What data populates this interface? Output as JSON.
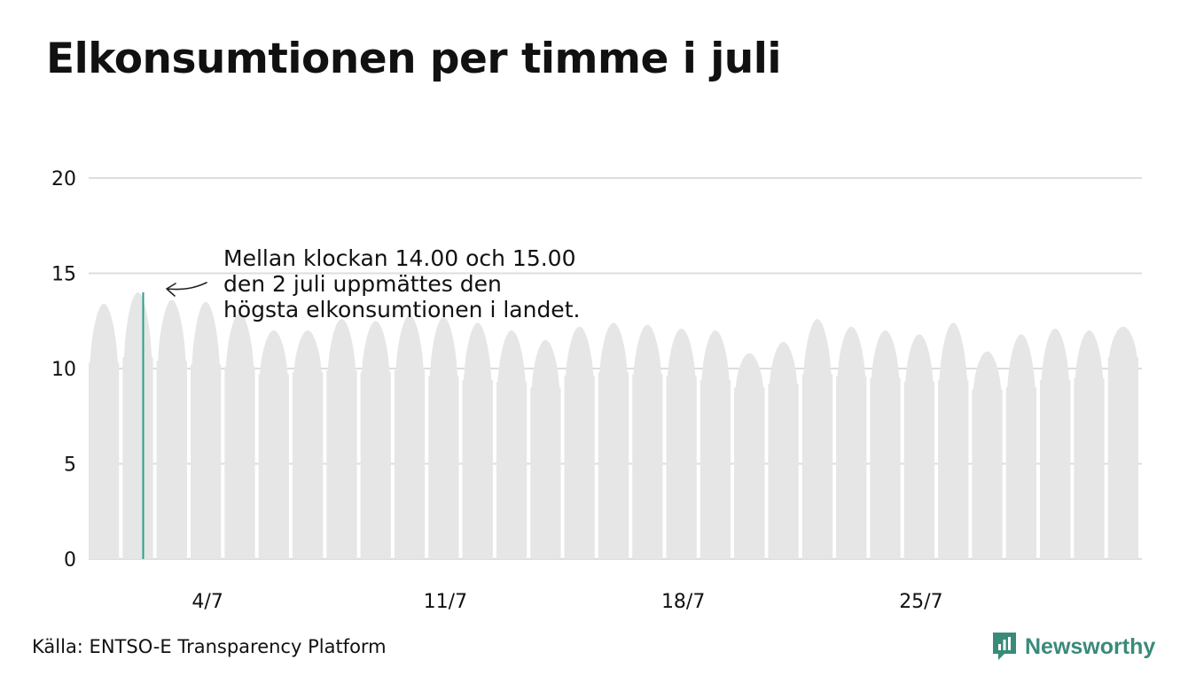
{
  "title": "Elkonsumtionen per timme i juli",
  "source": "Källa: ENTSO-E Transparency Platform",
  "brand": {
    "name": "Newsworthy",
    "icon": "newsworthy-logo-icon",
    "color": "#3a8a7a"
  },
  "annotation": {
    "lines": [
      "Mellan klockan 14.00 och 15.00",
      "den 2 juli uppmättes den",
      "högsta elkonsumtionen i landet."
    ]
  },
  "colors": {
    "area": "#e6e6e6",
    "highlight": "#2a9d8f",
    "grid": "#dddddd"
  },
  "chart_data": {
    "type": "area",
    "title": "Elkonsumtionen per timme i juli",
    "xlabel": "",
    "ylabel": "",
    "ylim": [
      0,
      20
    ],
    "yticks": [
      0,
      5,
      10,
      15,
      20
    ],
    "xticks": [
      "4/7",
      "11/7",
      "18/7",
      "25/7"
    ],
    "x_unit": "day of July",
    "grid": true,
    "daily_peaks": [
      13.4,
      14.0,
      13.6,
      13.5,
      12.9,
      12.0,
      12.0,
      12.6,
      12.5,
      12.8,
      12.7,
      12.4,
      12.0,
      11.5,
      12.2,
      12.4,
      12.3,
      12.1,
      12.0,
      10.8,
      11.4,
      12.6,
      12.2,
      12.0,
      11.8,
      12.4,
      10.9,
      11.8,
      12.1,
      12.0,
      12.2
    ],
    "daily_troughs": [
      10.3,
      10.6,
      10.4,
      10.2,
      10.1,
      9.7,
      9.8,
      9.9,
      9.8,
      9.9,
      9.6,
      9.4,
      9.3,
      9.0,
      9.6,
      9.8,
      9.7,
      9.6,
      9.4,
      9.0,
      9.2,
      9.7,
      9.6,
      9.5,
      9.3,
      9.4,
      8.9,
      9.0,
      9.4,
      9.5,
      10.6
    ],
    "max_point": {
      "day": 2,
      "hour": "14.00-15.00",
      "value": 14.0
    }
  }
}
